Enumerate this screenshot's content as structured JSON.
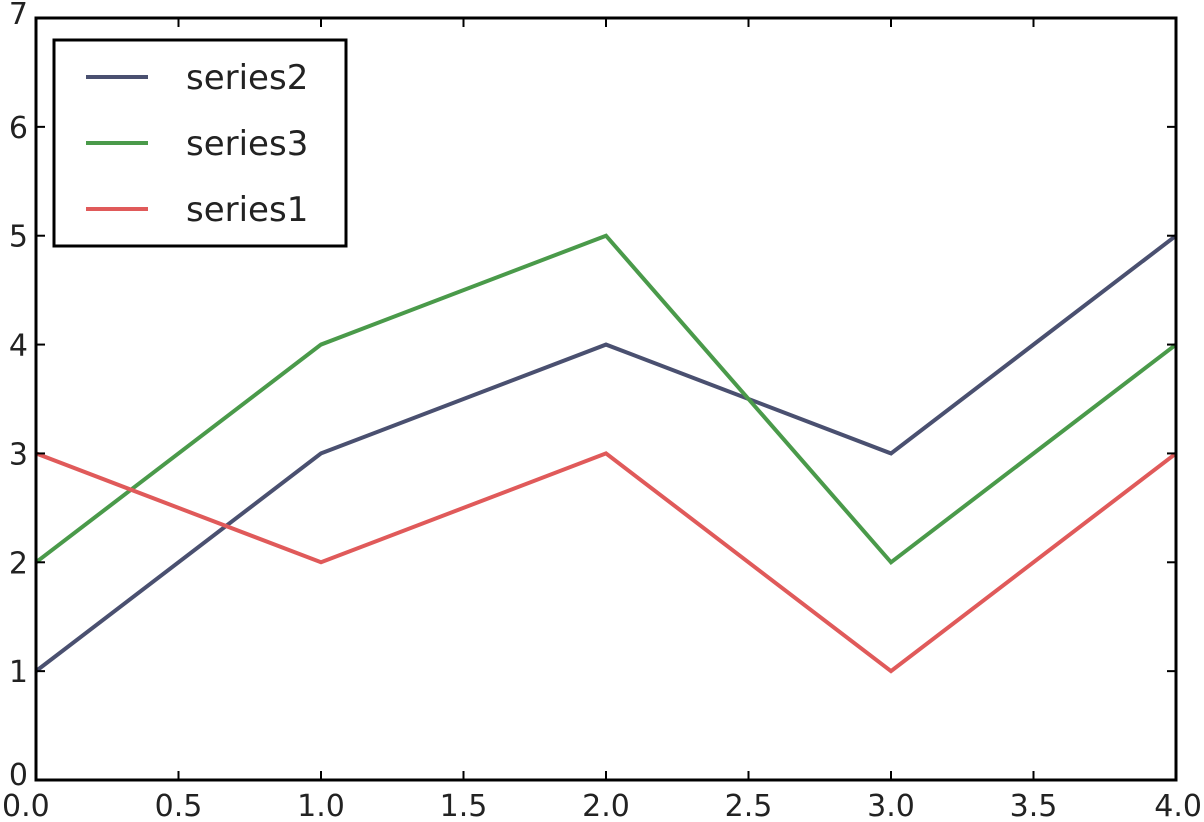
{
  "chart_data": {
    "type": "line",
    "x": [
      0,
      1,
      2,
      3,
      4
    ],
    "xlim": [
      0,
      4
    ],
    "ylim": [
      0,
      7
    ],
    "xticks": [
      "0.0",
      "0.5",
      "1.0",
      "1.5",
      "2.0",
      "2.5",
      "3.0",
      "3.5",
      "4.0"
    ],
    "yticks": [
      "0",
      "1",
      "2",
      "3",
      "4",
      "5",
      "6",
      "7"
    ],
    "grid": false,
    "legend_position": "top-left",
    "series": [
      {
        "name": "series2",
        "values": [
          1,
          3,
          4,
          3,
          5
        ],
        "color": "#4a5070"
      },
      {
        "name": "series3",
        "values": [
          2,
          4,
          5,
          2,
          4
        ],
        "color": "#4a9a4a"
      },
      {
        "name": "series1",
        "values": [
          3,
          2,
          3,
          1,
          3
        ],
        "color": "#e05a5a"
      }
    ]
  }
}
